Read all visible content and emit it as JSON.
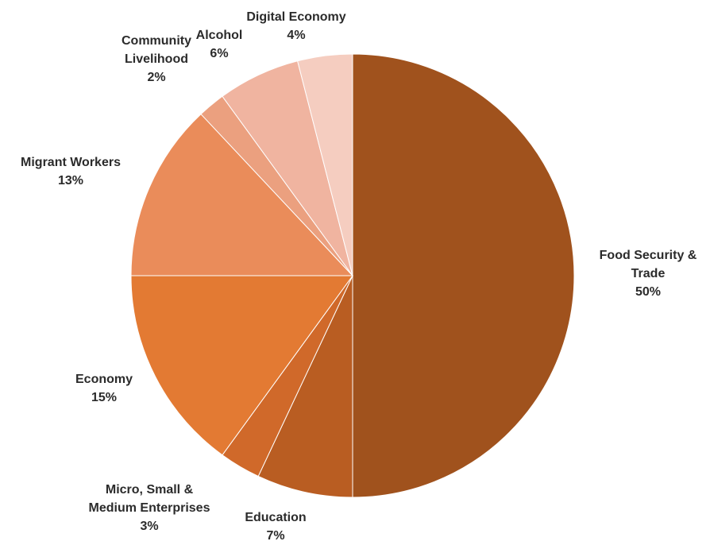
{
  "chart_data": {
    "type": "pie",
    "title": "",
    "start": "12 o'clock",
    "direction": "clockwise",
    "slices": [
      {
        "label_lines": [
          "Food Security &",
          "Trade"
        ],
        "value": 50,
        "value_label": "50%",
        "color": "#a0521d"
      },
      {
        "label_lines": [
          "Education"
        ],
        "value": 7,
        "value_label": "7%",
        "color": "#b95d22"
      },
      {
        "label_lines": [
          "Micro, Small &",
          "Medium Enterprises"
        ],
        "value": 3,
        "value_label": "3%",
        "color": "#d0692a"
      },
      {
        "label_lines": [
          "Economy"
        ],
        "value": 15,
        "value_label": "15%",
        "color": "#e37a33"
      },
      {
        "label_lines": [
          "Migrant Workers"
        ],
        "value": 13,
        "value_label": "13%",
        "color": "#ea8c5a"
      },
      {
        "label_lines": [
          "Community",
          "Livelihood"
        ],
        "value": 2,
        "value_label": "2%",
        "color": "#eba07f"
      },
      {
        "label_lines": [
          "Alcohol"
        ],
        "value": 6,
        "value_label": "6%",
        "color": "#f0b4a0"
      },
      {
        "label_lines": [
          "Digital Economy"
        ],
        "value": 4,
        "value_label": "4%",
        "color": "#f5cdc0"
      }
    ]
  }
}
